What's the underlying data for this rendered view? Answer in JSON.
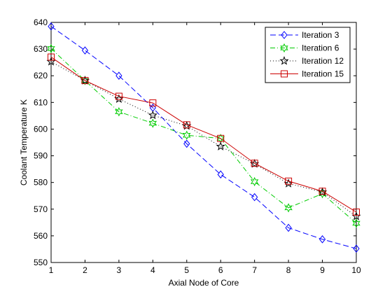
{
  "chart_data": {
    "type": "line",
    "title": "",
    "xlabel": "Axial Node of Core",
    "ylabel": "Coolant Temperature K",
    "xlim": [
      1,
      10
    ],
    "ylim": [
      550,
      640
    ],
    "x_ticks": [
      1,
      2,
      3,
      4,
      5,
      6,
      7,
      8,
      9,
      10
    ],
    "y_ticks": [
      550,
      560,
      570,
      580,
      590,
      600,
      610,
      620,
      630,
      640
    ],
    "grid": false,
    "legend_position": "top-right",
    "x": [
      1,
      2,
      3,
      4,
      5,
      6,
      7,
      8,
      9,
      10
    ],
    "series": [
      {
        "name": "Iteration 3",
        "color": "#0000ff",
        "line_style": "dashed",
        "marker": "diamond",
        "values": [
          638.5,
          629.5,
          620,
          608,
          594.5,
          583,
          574.5,
          563,
          558.7,
          555.2
        ]
      },
      {
        "name": "Iteration 6",
        "color": "#00cc00",
        "line_style": "dash-dot",
        "marker": "hexagram",
        "values": [
          630.2,
          618.2,
          606.5,
          602.2,
          597.7,
          596.5,
          580.3,
          570.5,
          575.8,
          564.7
        ]
      },
      {
        "name": "Iteration 12",
        "color": "#000000",
        "line_style": "dotted",
        "marker": "pentagram",
        "values": [
          625.3,
          618.2,
          611.3,
          605.2,
          601.2,
          593.5,
          587,
          579.6,
          576.4,
          567.3
        ]
      },
      {
        "name": "Iteration 15",
        "color": "#cc0000",
        "line_style": "solid",
        "marker": "square",
        "values": [
          627,
          618.2,
          612.3,
          609.8,
          601.6,
          596.5,
          587.2,
          580.5,
          576.7,
          568.9
        ]
      }
    ]
  }
}
